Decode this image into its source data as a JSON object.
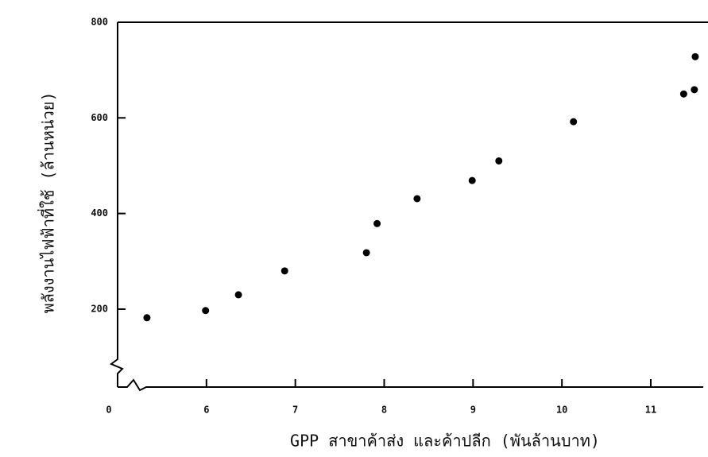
{
  "chart_data": {
    "type": "scatter",
    "x_label": "GPP สาขาค้าส่ง และค้าปลีก (พันล้านบาท)",
    "y_label": "พลังงานไฟฟ้าที่ใช้ (ล้านหน่วย)",
    "origin_label": "0",
    "x": [
      5.33,
      5.99,
      6.36,
      6.88,
      7.8,
      7.92,
      8.37,
      8.99,
      9.29,
      10.13,
      11.37,
      11.49,
      11.5
    ],
    "series": [
      {
        "color": "#000000",
        "values": [
          182,
          197,
          230,
          280,
          318,
          379,
          431,
          469,
          510,
          592,
          650,
          659,
          728
        ]
      }
    ],
    "xlim": [
      5,
      11.59
    ],
    "xticks": [
      6,
      7,
      8,
      9,
      10,
      11
    ],
    "ylim": [
      37,
      800
    ],
    "yticks": [
      200,
      400,
      600,
      800
    ],
    "axis_break": true
  }
}
